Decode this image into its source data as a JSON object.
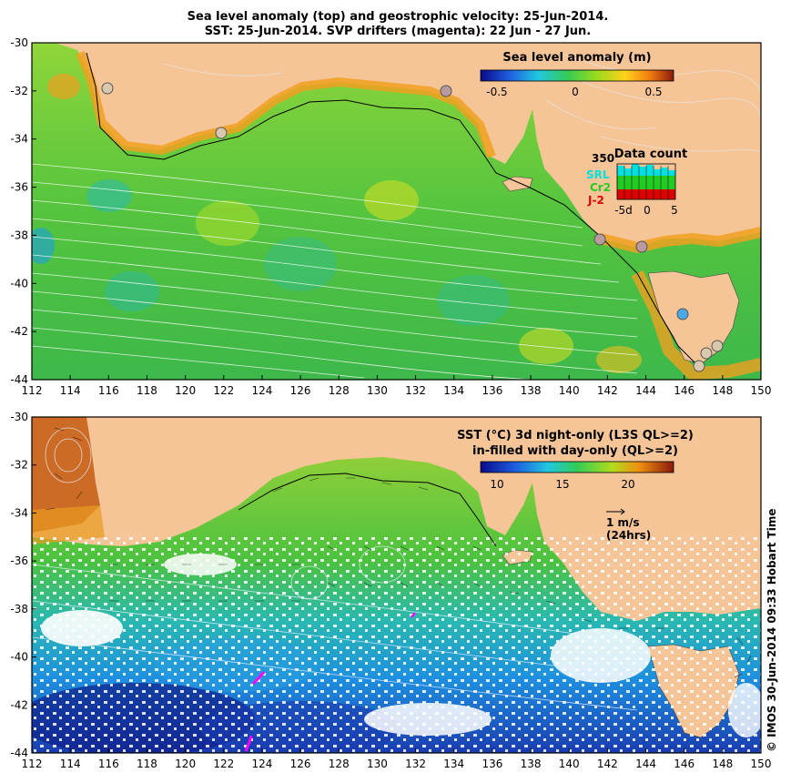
{
  "title": {
    "line1": "Sea level anomaly (top) and geostrophic velocity: 25-Jun-2014.",
    "line2": "SST: 25-Jun-2014. SVP drifters (magenta): 22 Jun - 27 Jun."
  },
  "axes": {
    "lon_ticks": [
      "112",
      "114",
      "116",
      "118",
      "120",
      "122",
      "124",
      "126",
      "128",
      "130",
      "132",
      "134",
      "136",
      "138",
      "140",
      "142",
      "144",
      "146",
      "148",
      "150"
    ],
    "lat_ticks": [
      "-30",
      "-32",
      "-34",
      "-36",
      "-38",
      "-40",
      "-42",
      "-44"
    ],
    "lon_range": [
      112,
      150
    ],
    "lat_range": [
      -44,
      -30
    ]
  },
  "top_panel": {
    "colorbar_title": "Sea level anomaly (m)",
    "colorbar_ticks": [
      "-0.5",
      "0",
      "0.5"
    ],
    "data_count": {
      "title": "Data count",
      "max_label": "350",
      "satellites": [
        "SRL",
        "Cr2",
        "J-2"
      ],
      "satellite_colors": [
        "#00e0e0",
        "#22cc22",
        "#dd0000"
      ],
      "x_ticks": [
        "-5d",
        "0",
        "5"
      ]
    }
  },
  "bottom_panel": {
    "legend_line1": "SST (°C)  3d night-only (L3S QL>=2)",
    "legend_line2": "in-filled with day-only (QL>=2)",
    "colorbar_ticks": [
      "10",
      "15",
      "20"
    ],
    "velocity_scale": "1 m/s",
    "velocity_note": "(24hrs)"
  },
  "credit": "© IMOS 30-Jun-2014 09:33 Hobart Time",
  "colors": {
    "land": "#f5c598",
    "drifter": "#ff00ff",
    "frame": "#000000"
  }
}
